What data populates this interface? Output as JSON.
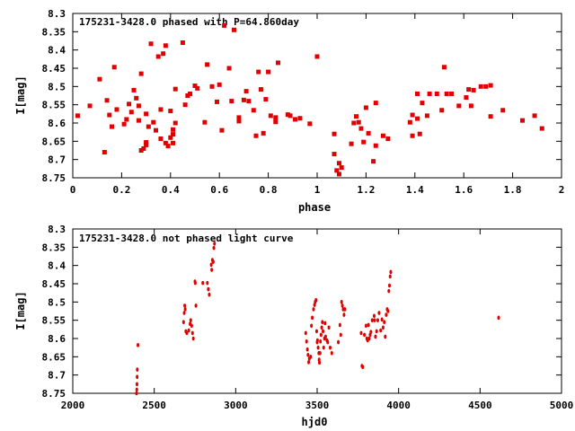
{
  "chart_data": [
    {
      "type": "scatter",
      "title": "175231-3428.0 phased with P=64.860day",
      "xlabel": "phase",
      "ylabel": "I[mag]",
      "xlim": [
        0,
        2
      ],
      "ylim": [
        8.3,
        8.75
      ],
      "y_inverted": true,
      "xticks": [
        "0",
        "0.2",
        "0.4",
        "0.6",
        "0.8",
        "1",
        "1.2",
        "1.4",
        "1.6",
        "1.8",
        "2"
      ],
      "xtick_values": [
        0,
        0.2,
        0.4,
        0.6,
        0.8,
        1.0,
        1.2,
        1.4,
        1.6,
        1.8,
        2.0
      ],
      "yticks": [
        "8.3",
        "8.35",
        "8.4",
        "8.45",
        "8.5",
        "8.55",
        "8.6",
        "8.65",
        "8.7",
        "8.75"
      ],
      "ytick_values": [
        8.3,
        8.35,
        8.4,
        8.45,
        8.5,
        8.55,
        8.6,
        8.65,
        8.7,
        8.75
      ],
      "grid": false,
      "color": "#e00000",
      "points": [
        [
          0.02,
          8.58
        ],
        [
          0.07,
          8.553
        ],
        [
          0.11,
          8.48
        ],
        [
          0.13,
          8.68
        ],
        [
          0.14,
          8.538
        ],
        [
          0.15,
          8.578
        ],
        [
          0.16,
          8.61
        ],
        [
          0.17,
          8.447
        ],
        [
          0.18,
          8.563
        ],
        [
          0.21,
          8.603
        ],
        [
          0.22,
          8.59
        ],
        [
          0.23,
          8.548
        ],
        [
          0.24,
          8.57
        ],
        [
          0.25,
          8.51
        ],
        [
          0.26,
          8.532
        ],
        [
          0.27,
          8.553
        ],
        [
          0.27,
          8.593
        ],
        [
          0.28,
          8.465
        ],
        [
          0.28,
          8.675
        ],
        [
          0.29,
          8.67
        ],
        [
          0.3,
          8.575
        ],
        [
          0.3,
          8.653
        ],
        [
          0.3,
          8.66
        ],
        [
          0.31,
          8.61
        ],
        [
          0.32,
          8.383
        ],
        [
          0.33,
          8.598
        ],
        [
          0.34,
          8.62
        ],
        [
          0.35,
          8.418
        ],
        [
          0.36,
          8.563
        ],
        [
          0.36,
          8.643
        ],
        [
          0.37,
          8.41
        ],
        [
          0.38,
          8.655
        ],
        [
          0.38,
          8.388
        ],
        [
          0.39,
          8.663
        ],
        [
          0.4,
          8.567
        ],
        [
          0.4,
          8.64
        ],
        [
          0.41,
          8.631
        ],
        [
          0.41,
          8.618
        ],
        [
          0.41,
          8.655
        ],
        [
          0.42,
          8.507
        ],
        [
          0.42,
          8.6
        ],
        [
          0.45,
          8.38
        ],
        [
          0.46,
          8.55
        ],
        [
          0.47,
          8.525
        ],
        [
          0.48,
          8.52
        ],
        [
          0.5,
          8.498
        ],
        [
          0.51,
          8.505
        ],
        [
          0.54,
          8.598
        ],
        [
          0.55,
          8.44
        ],
        [
          0.57,
          8.5
        ],
        [
          0.59,
          8.542
        ],
        [
          0.6,
          8.495
        ],
        [
          0.61,
          8.62
        ],
        [
          0.62,
          8.333
        ],
        [
          0.64,
          8.45
        ],
        [
          0.65,
          8.54
        ],
        [
          0.66,
          8.345
        ],
        [
          0.68,
          8.595
        ],
        [
          0.68,
          8.585
        ],
        [
          0.7,
          8.537
        ],
        [
          0.71,
          8.513
        ],
        [
          0.72,
          8.54
        ],
        [
          0.74,
          8.565
        ],
        [
          0.75,
          8.635
        ],
        [
          0.76,
          8.46
        ],
        [
          0.77,
          8.508
        ],
        [
          0.78,
          8.628
        ],
        [
          0.79,
          8.535
        ],
        [
          0.8,
          8.46
        ],
        [
          0.81,
          8.58
        ],
        [
          0.83,
          8.585
        ],
        [
          0.83,
          8.597
        ],
        [
          0.84,
          8.435
        ],
        [
          0.88,
          8.577
        ],
        [
          0.89,
          8.58
        ],
        [
          0.91,
          8.59
        ],
        [
          0.93,
          8.587
        ],
        [
          0.97,
          8.602
        ],
        [
          1.0,
          8.418
        ],
        [
          1.07,
          8.685
        ],
        [
          1.07,
          8.63
        ],
        [
          1.08,
          8.73
        ],
        [
          1.09,
          8.71
        ],
        [
          1.09,
          8.74
        ],
        [
          1.1,
          8.722
        ],
        [
          1.14,
          8.657
        ],
        [
          1.15,
          8.6
        ],
        [
          1.16,
          8.582
        ],
        [
          1.17,
          8.598
        ],
        [
          1.18,
          8.615
        ],
        [
          1.19,
          8.652
        ],
        [
          1.2,
          8.558
        ],
        [
          1.21,
          8.628
        ],
        [
          1.23,
          8.705
        ],
        [
          1.24,
          8.545
        ],
        [
          1.24,
          8.662
        ],
        [
          1.27,
          8.635
        ],
        [
          1.29,
          8.643
        ],
        [
          1.38,
          8.598
        ],
        [
          1.39,
          8.635
        ],
        [
          1.39,
          8.578
        ],
        [
          1.41,
          8.52
        ],
        [
          1.41,
          8.588
        ],
        [
          1.42,
          8.63
        ],
        [
          1.43,
          8.545
        ],
        [
          1.45,
          8.58
        ],
        [
          1.46,
          8.52
        ],
        [
          1.49,
          8.52
        ],
        [
          1.51,
          8.565
        ],
        [
          1.52,
          8.447
        ],
        [
          1.53,
          8.52
        ],
        [
          1.55,
          8.52
        ],
        [
          1.58,
          8.553
        ],
        [
          1.61,
          8.53
        ],
        [
          1.62,
          8.508
        ],
        [
          1.63,
          8.553
        ],
        [
          1.64,
          8.51
        ],
        [
          1.67,
          8.5
        ],
        [
          1.69,
          8.5
        ],
        [
          1.71,
          8.497
        ],
        [
          1.71,
          8.582
        ],
        [
          1.76,
          8.565
        ],
        [
          1.84,
          8.593
        ],
        [
          1.89,
          8.58
        ],
        [
          1.92,
          8.615
        ]
      ]
    },
    {
      "type": "scatter",
      "title": "175231-3428.0 not phased light curve",
      "xlabel": "hjd0",
      "ylabel": "I[mag]",
      "xlim": [
        2000,
        5000
      ],
      "ylim": [
        8.3,
        8.75
      ],
      "y_inverted": true,
      "xticks": [
        "2000",
        "2500",
        "3000",
        "3500",
        "4000",
        "4500",
        "5000"
      ],
      "xtick_values": [
        2000,
        2500,
        3000,
        3500,
        4000,
        4500,
        5000
      ],
      "yticks": [
        "8.3",
        "8.35",
        "8.4",
        "8.45",
        "8.5",
        "8.55",
        "8.6",
        "8.65",
        "8.7",
        "8.75"
      ],
      "ytick_values": [
        8.3,
        8.35,
        8.4,
        8.45,
        8.5,
        8.55,
        8.6,
        8.65,
        8.7,
        8.75
      ],
      "grid": false,
      "color": "#e00000",
      "points": [
        [
          2391,
          8.75
        ],
        [
          2393,
          8.74
        ],
        [
          2394,
          8.725
        ],
        [
          2395,
          8.705
        ],
        [
          2396,
          8.685
        ],
        [
          2400,
          8.618
        ],
        [
          2680,
          8.555
        ],
        [
          2684,
          8.53
        ],
        [
          2687,
          8.51
        ],
        [
          2690,
          8.52
        ],
        [
          2694,
          8.58
        ],
        [
          2700,
          8.585
        ],
        [
          2712,
          8.578
        ],
        [
          2720,
          8.56
        ],
        [
          2724,
          8.55
        ],
        [
          2730,
          8.565
        ],
        [
          2735,
          8.585
        ],
        [
          2740,
          8.6
        ],
        [
          2750,
          8.444
        ],
        [
          2752,
          8.448
        ],
        [
          2756,
          8.51
        ],
        [
          2798,
          8.448
        ],
        [
          2826,
          8.448
        ],
        [
          2832,
          8.465
        ],
        [
          2838,
          8.48
        ],
        [
          2850,
          8.398
        ],
        [
          2853,
          8.412
        ],
        [
          2857,
          8.385
        ],
        [
          2862,
          8.39
        ],
        [
          2866,
          8.352
        ],
        [
          2870,
          8.34
        ],
        [
          3430,
          8.585
        ],
        [
          3435,
          8.608
        ],
        [
          3440,
          8.63
        ],
        [
          3444,
          8.645
        ],
        [
          3448,
          8.665
        ],
        [
          3452,
          8.655
        ],
        [
          3460,
          8.65
        ],
        [
          3465,
          8.565
        ],
        [
          3470,
          8.543
        ],
        [
          3478,
          8.52
        ],
        [
          3484,
          8.508
        ],
        [
          3488,
          8.5
        ],
        [
          3493,
          8.495
        ],
        [
          3497,
          8.58
        ],
        [
          3500,
          8.61
        ],
        [
          3502,
          8.605
        ],
        [
          3506,
          8.625
        ],
        [
          3510,
          8.64
        ],
        [
          3512,
          8.658
        ],
        [
          3514,
          8.666
        ],
        [
          3518,
          8.64
        ],
        [
          3520,
          8.608
        ],
        [
          3524,
          8.59
        ],
        [
          3528,
          8.57
        ],
        [
          3532,
          8.555
        ],
        [
          3536,
          8.58
        ],
        [
          3540,
          8.625
        ],
        [
          3545,
          8.6
        ],
        [
          3548,
          8.558
        ],
        [
          3552,
          8.595
        ],
        [
          3560,
          8.605
        ],
        [
          3565,
          8.61
        ],
        [
          3572,
          8.57
        ],
        [
          3580,
          8.625
        ],
        [
          3590,
          8.64
        ],
        [
          3630,
          8.61
        ],
        [
          3640,
          8.563
        ],
        [
          3645,
          8.59
        ],
        [
          3650,
          8.5
        ],
        [
          3655,
          8.51
        ],
        [
          3660,
          8.52
        ],
        [
          3665,
          8.535
        ],
        [
          3670,
          8.52
        ],
        [
          3770,
          8.585
        ],
        [
          3775,
          8.675
        ],
        [
          3780,
          8.678
        ],
        [
          3790,
          8.59
        ],
        [
          3800,
          8.565
        ],
        [
          3805,
          8.6
        ],
        [
          3810,
          8.605
        ],
        [
          3815,
          8.563
        ],
        [
          3820,
          8.6
        ],
        [
          3825,
          8.59
        ],
        [
          3830,
          8.582
        ],
        [
          3838,
          8.55
        ],
        [
          3850,
          8.538
        ],
        [
          3853,
          8.55
        ],
        [
          3858,
          8.595
        ],
        [
          3865,
          8.58
        ],
        [
          3872,
          8.55
        ],
        [
          3880,
          8.53
        ],
        [
          3890,
          8.578
        ],
        [
          3898,
          8.548
        ],
        [
          3905,
          8.57
        ],
        [
          3912,
          8.555
        ],
        [
          3918,
          8.595
        ],
        [
          3924,
          8.535
        ],
        [
          3930,
          8.52
        ],
        [
          3935,
          8.525
        ],
        [
          3940,
          8.47
        ],
        [
          3944,
          8.455
        ],
        [
          3948,
          8.43
        ],
        [
          3952,
          8.418
        ],
        [
          4614,
          8.543
        ]
      ]
    }
  ]
}
